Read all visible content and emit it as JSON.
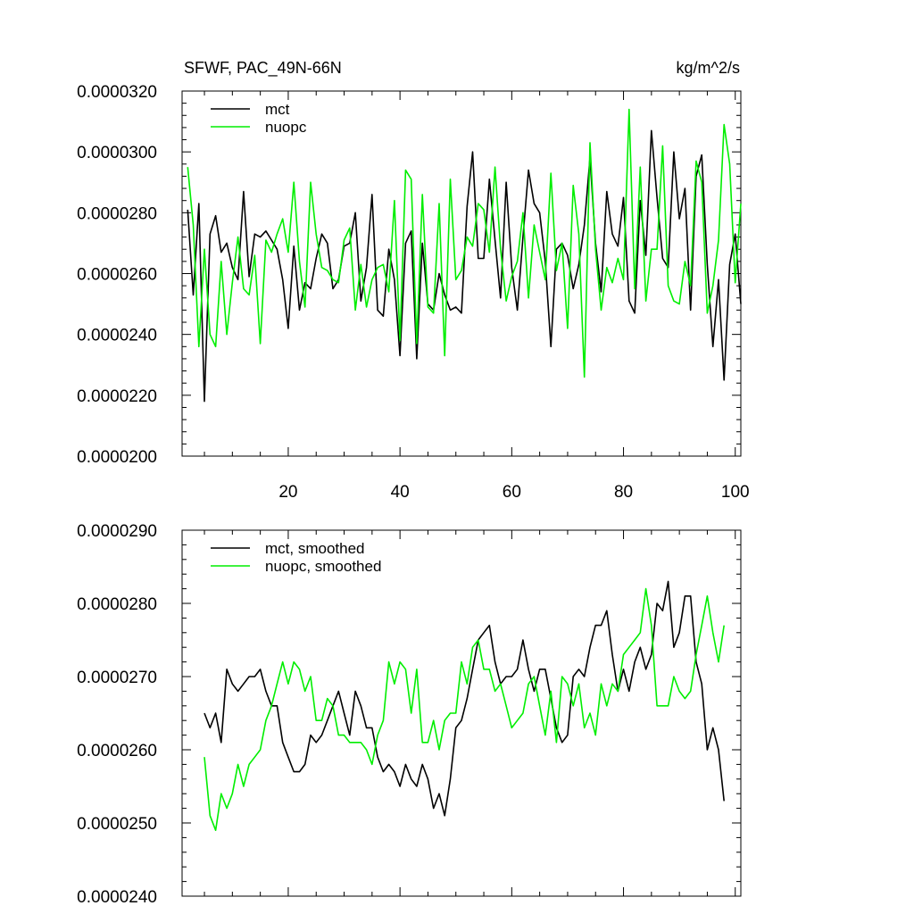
{
  "chart_data": [
    {
      "type": "line",
      "title": "SFWF, PAC_49N-66N",
      "units": "kg/m^2/s",
      "xlabel": "",
      "ylabel": "",
      "xlim": [
        1,
        101
      ],
      "ylim": [
        2e-05,
        3.2e-05
      ],
      "x_ticks": [
        "20",
        "40",
        "60",
        "80",
        "100"
      ],
      "y_ticks": [
        "0.0000200",
        "0.0000220",
        "0.0000240",
        "0.0000260",
        "0.0000280",
        "0.0000300",
        "0.0000320"
      ],
      "legend": "top-left",
      "series": [
        {
          "name": "mct",
          "color": "#000000",
          "x": [
            2,
            3,
            4,
            5,
            6,
            7,
            8,
            9,
            10,
            11,
            12,
            13,
            14,
            15,
            16,
            17,
            18,
            19,
            20,
            21,
            22,
            23,
            24,
            25,
            26,
            27,
            28,
            29,
            30,
            31,
            32,
            33,
            34,
            35,
            36,
            37,
            38,
            39,
            40,
            41,
            42,
            43,
            44,
            45,
            46,
            47,
            48,
            49,
            50,
            51,
            52,
            53,
            54,
            55,
            56,
            57,
            58,
            59,
            60,
            61,
            62,
            63,
            64,
            65,
            66,
            67,
            68,
            69,
            70,
            71,
            72,
            73,
            74,
            75,
            76,
            77,
            78,
            79,
            80,
            81,
            82,
            83,
            84,
            85,
            86,
            87,
            88,
            89,
            90,
            91,
            92,
            93,
            94,
            95,
            96,
            97,
            98,
            99,
            100,
            101
          ],
          "values": [
            2.81e-05,
            2.53e-05,
            2.83e-05,
            2.18e-05,
            2.73e-05,
            2.79e-05,
            2.67e-05,
            2.7e-05,
            2.62e-05,
            2.58e-05,
            2.87e-05,
            2.59e-05,
            2.73e-05,
            2.72e-05,
            2.74e-05,
            2.71e-05,
            2.68e-05,
            2.58e-05,
            2.42e-05,
            2.69e-05,
            2.48e-05,
            2.57e-05,
            2.55e-05,
            2.65e-05,
            2.73e-05,
            2.7e-05,
            2.55e-05,
            2.58e-05,
            2.69e-05,
            2.7e-05,
            2.8e-05,
            2.51e-05,
            2.62e-05,
            2.86e-05,
            2.48e-05,
            2.46e-05,
            2.68e-05,
            2.58e-05,
            2.33e-05,
            2.7e-05,
            2.74e-05,
            2.32e-05,
            2.7e-05,
            2.5e-05,
            2.48e-05,
            2.6e-05,
            2.53e-05,
            2.48e-05,
            2.49e-05,
            2.47e-05,
            2.82e-05,
            3e-05,
            2.65e-05,
            2.65e-05,
            2.91e-05,
            2.71e-05,
            2.52e-05,
            2.9e-05,
            2.62e-05,
            2.48e-05,
            2.72e-05,
            2.94e-05,
            2.83e-05,
            2.8e-05,
            2.64e-05,
            2.36e-05,
            2.68e-05,
            2.7e-05,
            2.66e-05,
            2.55e-05,
            2.63e-05,
            2.76e-05,
            2.98e-05,
            2.7e-05,
            2.54e-05,
            2.87e-05,
            2.73e-05,
            2.69e-05,
            2.85e-05,
            2.51e-05,
            2.47e-05,
            2.84e-05,
            2.66e-05,
            3.07e-05,
            2.85e-05,
            2.65e-05,
            2.62e-05,
            3e-05,
            2.78e-05,
            2.88e-05,
            2.48e-05,
            2.92e-05,
            2.99e-05,
            2.63e-05,
            2.36e-05,
            2.58e-05,
            2.25e-05,
            2.63e-05,
            2.73e-05,
            2.5e-05
          ]
        },
        {
          "name": "nuopc",
          "color": "#00ee00",
          "x": [
            2,
            3,
            4,
            5,
            6,
            7,
            8,
            9,
            10,
            11,
            12,
            13,
            14,
            15,
            16,
            17,
            18,
            19,
            20,
            21,
            22,
            23,
            24,
            25,
            26,
            27,
            28,
            29,
            30,
            31,
            32,
            33,
            34,
            35,
            36,
            37,
            38,
            39,
            40,
            41,
            42,
            43,
            44,
            45,
            46,
            47,
            48,
            49,
            50,
            51,
            52,
            53,
            54,
            55,
            56,
            57,
            58,
            59,
            60,
            61,
            62,
            63,
            64,
            65,
            66,
            67,
            68,
            69,
            70,
            71,
            72,
            73,
            74,
            75,
            76,
            77,
            78,
            79,
            80,
            81,
            82,
            83,
            84,
            85,
            86,
            87,
            88,
            89,
            90,
            91,
            92,
            93,
            94,
            95,
            96,
            97,
            98,
            99,
            100,
            101
          ],
          "values": [
            2.95e-05,
            2.76e-05,
            2.36e-05,
            2.68e-05,
            2.4e-05,
            2.36e-05,
            2.64e-05,
            2.4e-05,
            2.57e-05,
            2.72e-05,
            2.55e-05,
            2.53e-05,
            2.66e-05,
            2.37e-05,
            2.71e-05,
            2.67e-05,
            2.73e-05,
            2.78e-05,
            2.67e-05,
            2.9e-05,
            2.64e-05,
            2.49e-05,
            2.9e-05,
            2.73e-05,
            2.62e-05,
            2.61e-05,
            2.58e-05,
            2.57e-05,
            2.71e-05,
            2.75e-05,
            2.48e-05,
            2.63e-05,
            2.49e-05,
            2.58e-05,
            2.62e-05,
            2.63e-05,
            2.54e-05,
            2.84e-05,
            2.38e-05,
            2.94e-05,
            2.91e-05,
            2.37e-05,
            2.86e-05,
            2.49e-05,
            2.47e-05,
            2.83e-05,
            2.33e-05,
            2.91e-05,
            2.58e-05,
            2.61e-05,
            2.72e-05,
            2.69e-05,
            2.83e-05,
            2.81e-05,
            2.67e-05,
            2.95e-05,
            2.68e-05,
            2.51e-05,
            2.59e-05,
            2.64e-05,
            2.8e-05,
            2.52e-05,
            2.76e-05,
            2.67e-05,
            2.58e-05,
            2.93e-05,
            2.61e-05,
            2.7e-05,
            2.42e-05,
            2.89e-05,
            2.73e-05,
            2.26e-05,
            3.03e-05,
            2.68e-05,
            2.48e-05,
            2.62e-05,
            2.57e-05,
            2.65e-05,
            2.58e-05,
            3.14e-05,
            2.55e-05,
            2.95e-05,
            2.51e-05,
            2.68e-05,
            2.68e-05,
            3.02e-05,
            2.56e-05,
            2.51e-05,
            2.5e-05,
            2.64e-05,
            2.56e-05,
            2.97e-05,
            2.9e-05,
            2.47e-05,
            2.56e-05,
            2.71e-05,
            3.09e-05,
            2.96e-05,
            2.57e-05,
            2.83e-05
          ]
        }
      ]
    },
    {
      "type": "line",
      "title": "",
      "xlabel": "",
      "ylabel": "",
      "xlim": [
        1,
        101
      ],
      "ylim": [
        2.4e-05,
        2.9e-05
      ],
      "x_ticks": [],
      "y_ticks": [
        "0.0000240",
        "0.0000250",
        "0.0000260",
        "0.0000270",
        "0.0000280",
        "0.0000290"
      ],
      "legend": "top-left",
      "series": [
        {
          "name": "mct, smoothed",
          "color": "#000000",
          "x": [
            5,
            6,
            7,
            8,
            9,
            10,
            11,
            12,
            13,
            14,
            15,
            16,
            17,
            18,
            19,
            20,
            21,
            22,
            23,
            24,
            25,
            26,
            27,
            28,
            29,
            30,
            31,
            32,
            33,
            34,
            35,
            36,
            37,
            38,
            39,
            40,
            41,
            42,
            43,
            44,
            45,
            46,
            47,
            48,
            49,
            50,
            51,
            52,
            53,
            54,
            55,
            56,
            57,
            58,
            59,
            60,
            61,
            62,
            63,
            64,
            65,
            66,
            67,
            68,
            69,
            70,
            71,
            72,
            73,
            74,
            75,
            76,
            77,
            78,
            79,
            80,
            81,
            82,
            83,
            84,
            85,
            86,
            87,
            88,
            89,
            90,
            91,
            92,
            93,
            94,
            95,
            96,
            97,
            98
          ],
          "values": [
            2.65e-05,
            2.63e-05,
            2.65e-05,
            2.61e-05,
            2.71e-05,
            2.69e-05,
            2.68e-05,
            2.69e-05,
            2.7e-05,
            2.7e-05,
            2.71e-05,
            2.68e-05,
            2.66e-05,
            2.66e-05,
            2.61e-05,
            2.59e-05,
            2.57e-05,
            2.57e-05,
            2.58e-05,
            2.62e-05,
            2.61e-05,
            2.62e-05,
            2.64e-05,
            2.66e-05,
            2.68e-05,
            2.65e-05,
            2.62e-05,
            2.68e-05,
            2.66e-05,
            2.63e-05,
            2.63e-05,
            2.59e-05,
            2.57e-05,
            2.58e-05,
            2.57e-05,
            2.55e-05,
            2.58e-05,
            2.56e-05,
            2.55e-05,
            2.58e-05,
            2.56e-05,
            2.52e-05,
            2.54e-05,
            2.51e-05,
            2.56e-05,
            2.63e-05,
            2.64e-05,
            2.67e-05,
            2.71e-05,
            2.75e-05,
            2.76e-05,
            2.77e-05,
            2.72e-05,
            2.69e-05,
            2.7e-05,
            2.7e-05,
            2.71e-05,
            2.75e-05,
            2.71e-05,
            2.68e-05,
            2.71e-05,
            2.71e-05,
            2.67e-05,
            2.63e-05,
            2.61e-05,
            2.62e-05,
            2.7e-05,
            2.71e-05,
            2.7e-05,
            2.74e-05,
            2.77e-05,
            2.77e-05,
            2.79e-05,
            2.73e-05,
            2.68e-05,
            2.71e-05,
            2.68e-05,
            2.72e-05,
            2.74e-05,
            2.71e-05,
            2.73e-05,
            2.8e-05,
            2.79e-05,
            2.83e-05,
            2.74e-05,
            2.76e-05,
            2.81e-05,
            2.81e-05,
            2.72e-05,
            2.69e-05,
            2.6e-05,
            2.63e-05,
            2.6e-05,
            2.53e-05
          ]
        },
        {
          "name": "nuopc, smoothed",
          "color": "#00ee00",
          "x": [
            5,
            6,
            7,
            8,
            9,
            10,
            11,
            12,
            13,
            14,
            15,
            16,
            17,
            18,
            19,
            20,
            21,
            22,
            23,
            24,
            25,
            26,
            27,
            28,
            29,
            30,
            31,
            32,
            33,
            34,
            35,
            36,
            37,
            38,
            39,
            40,
            41,
            42,
            43,
            44,
            45,
            46,
            47,
            48,
            49,
            50,
            51,
            52,
            53,
            54,
            55,
            56,
            57,
            58,
            59,
            60,
            61,
            62,
            63,
            64,
            65,
            66,
            67,
            68,
            69,
            70,
            71,
            72,
            73,
            74,
            75,
            76,
            77,
            78,
            79,
            80,
            81,
            82,
            83,
            84,
            85,
            86,
            87,
            88,
            89,
            90,
            91,
            92,
            93,
            94,
            95,
            96,
            97,
            98
          ],
          "values": [
            2.59e-05,
            2.51e-05,
            2.49e-05,
            2.54e-05,
            2.52e-05,
            2.54e-05,
            2.58e-05,
            2.55e-05,
            2.58e-05,
            2.59e-05,
            2.6e-05,
            2.64e-05,
            2.66e-05,
            2.69e-05,
            2.72e-05,
            2.69e-05,
            2.72e-05,
            2.71e-05,
            2.68e-05,
            2.7e-05,
            2.64e-05,
            2.64e-05,
            2.67e-05,
            2.66e-05,
            2.62e-05,
            2.62e-05,
            2.61e-05,
            2.61e-05,
            2.61e-05,
            2.6e-05,
            2.58e-05,
            2.62e-05,
            2.64e-05,
            2.72e-05,
            2.69e-05,
            2.72e-05,
            2.71e-05,
            2.65e-05,
            2.71e-05,
            2.61e-05,
            2.61e-05,
            2.64e-05,
            2.6e-05,
            2.64e-05,
            2.65e-05,
            2.65e-05,
            2.72e-05,
            2.69e-05,
            2.74e-05,
            2.75e-05,
            2.71e-05,
            2.71e-05,
            2.68e-05,
            2.69e-05,
            2.66e-05,
            2.63e-05,
            2.64e-05,
            2.65e-05,
            2.69e-05,
            2.7e-05,
            2.66e-05,
            2.62e-05,
            2.68e-05,
            2.61e-05,
            2.7e-05,
            2.69e-05,
            2.66e-05,
            2.69e-05,
            2.63e-05,
            2.65e-05,
            2.62e-05,
            2.69e-05,
            2.66e-05,
            2.69e-05,
            2.68e-05,
            2.73e-05,
            2.74e-05,
            2.75e-05,
            2.76e-05,
            2.82e-05,
            2.77e-05,
            2.66e-05,
            2.66e-05,
            2.66e-05,
            2.7e-05,
            2.68e-05,
            2.67e-05,
            2.68e-05,
            2.73e-05,
            2.77e-05,
            2.81e-05,
            2.76e-05,
            2.72e-05,
            2.77e-05
          ]
        }
      ]
    }
  ]
}
